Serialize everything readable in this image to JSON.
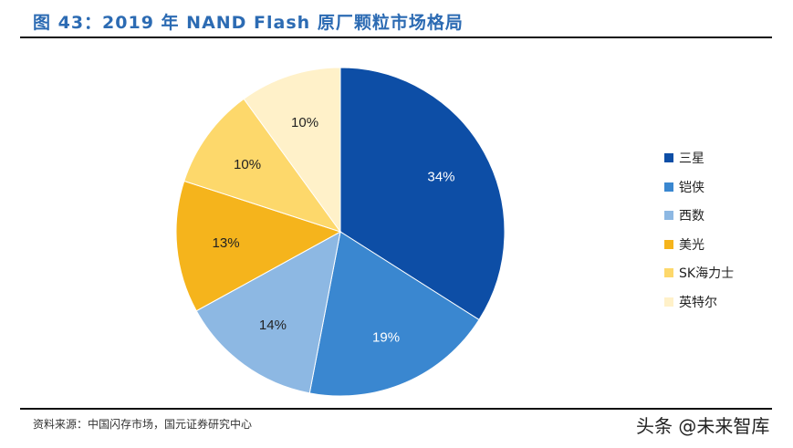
{
  "title": "图 43：2019 年 NAND Flash 原厂颗粒市场格局",
  "source": "资料来源：中国闪存市场，国元证券研究中心",
  "watermark": "头条 @未来智库",
  "chart_data": {
    "type": "pie",
    "title": "图 43：2019 年 NAND Flash 原厂颗粒市场格局",
    "legend_position": "right",
    "start": "top, clockwise",
    "slices": [
      {
        "name": "三星",
        "value": 34,
        "label": "34%",
        "color": "#0d4ea6"
      },
      {
        "name": "铠侠",
        "value": 19,
        "label": "19%",
        "color": "#3a87d0"
      },
      {
        "name": "西数",
        "value": 14,
        "label": "14%",
        "color": "#8db8e3"
      },
      {
        "name": "美光",
        "value": 13,
        "label": "13%",
        "color": "#f5b41c"
      },
      {
        "name": "SK海力士",
        "value": 10,
        "label": "10%",
        "color": "#fdd86b"
      },
      {
        "name": "英特尔",
        "value": 10,
        "label": "10%",
        "color": "#fff1c9"
      }
    ]
  }
}
